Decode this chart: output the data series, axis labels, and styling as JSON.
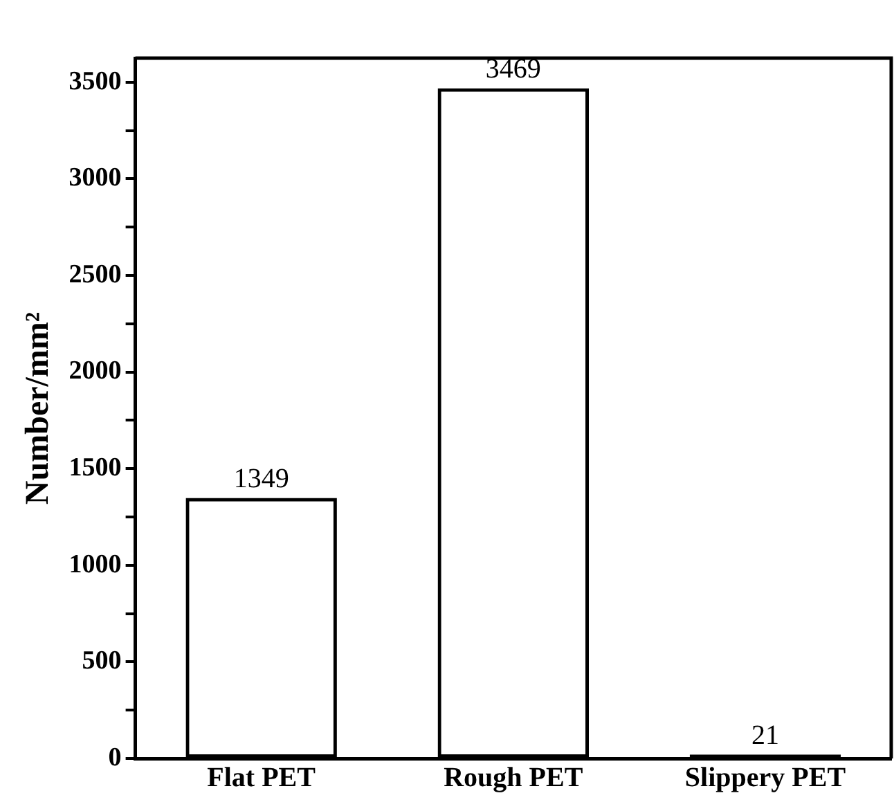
{
  "chart_data": {
    "type": "bar",
    "ylabel": "Number/mm²",
    "categories": [
      "Flat PET",
      "Rough PET",
      "Slippery PET"
    ],
    "values": [
      1349,
      3469,
      21
    ],
    "color": "#000000",
    "data_labels": true,
    "grid": false,
    "legend": false,
    "ylim": [
      0,
      3625
    ],
    "yticks": [
      0,
      {
        "value": 250,
        "label": null
      },
      500,
      {
        "value": 750,
        "label": null
      },
      1000,
      {
        "value": 1250,
        "label": null
      },
      1500,
      {
        "value": 1750,
        "label": null
      },
      2000,
      {
        "value": 2250,
        "label": null
      },
      2500,
      {
        "value": 2750,
        "label": null
      },
      3000,
      {
        "value": 3250,
        "label": null
      },
      3500
    ]
  }
}
